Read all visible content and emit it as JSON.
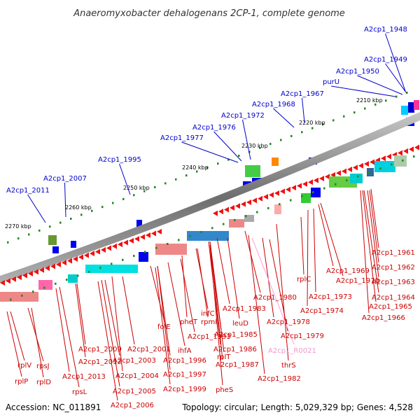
{
  "title": "Anaeromyxobacter dehalogenans 2CP-1, complete genome",
  "footer": {
    "accession": "Accession: NC_011891",
    "summary": "Topology: circular; Length: 5,029,329 bp; Genes: 4,528"
  },
  "colors": {
    "forward_label": "#0000cc",
    "reverse_label": "#cc0000",
    "rna_label": "#ee99cc",
    "backbone": "#777777",
    "tick": "#228822"
  },
  "kbp_labels": [
    "2210 kbp",
    "2220 kbp",
    "2230 kbp",
    "2240 kbp",
    "2250 kbp",
    "2260 kbp",
    "2270 kbp"
  ],
  "forward_labels": [
    "A2cp1_1948",
    "A2cp1_1949",
    "A2cp1_1950",
    "purU",
    "A2cp1_1967",
    "A2cp1_1968",
    "A2cp1_1972",
    "A2cp1_1976",
    "A2cp1_1977",
    "A2cp1_1995",
    "A2cp1_2007",
    "A2cp1_2011"
  ],
  "reverse_labels": [
    "A2cp1_1961",
    "A2cp1_1962",
    "A2cp1_1963",
    "A2cp1_1964",
    "A2cp1_1965",
    "A2cp1_1966",
    "A2cp1_1969",
    "A2cp1_1970",
    "rplC",
    "A2cp1_1973",
    "A2cp1_1974",
    "A2cp1_1980",
    "A2cp1_1978",
    "A2cp1_1979",
    "A2cp1_1983",
    "leuD",
    "A2cp1_1985",
    "A2cp1_1986",
    "A2cp1_1987",
    "A2cp1_1982",
    "thrS",
    "infC",
    "rpmI",
    "pheT",
    "folE",
    "A2cp1_1993",
    "ihfA",
    "A2cp1_1996",
    "rplT",
    "A2cp1_1997",
    "pheS",
    "A2cp1_1999",
    "A2cp1_2001",
    "A2cp1_2003",
    "A2cp1_2004",
    "A2cp1_2005",
    "A2cp1_2006",
    "A2cp1_2009",
    "A2cp1_2012",
    "A2cp1_2013",
    "rpsL",
    "rplV",
    "rpsJ",
    "rplP",
    "rplD"
  ],
  "rna_labels": [
    "A2cp1_R0021"
  ]
}
